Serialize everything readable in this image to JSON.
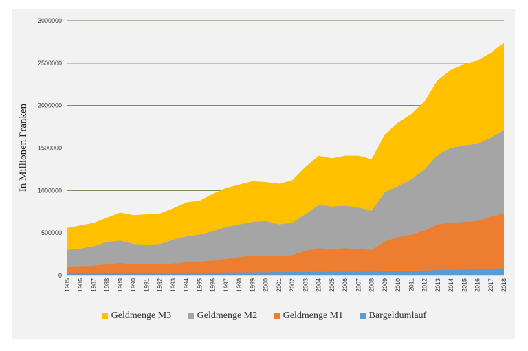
{
  "chart_data": {
    "type": "area",
    "stacked": true,
    "ylabel": "In Millionen Franken",
    "ylim": [
      0,
      3000000
    ],
    "yticks": [
      0,
      500000,
      1000000,
      1500000,
      2000000,
      2500000,
      3000000
    ],
    "ytick_labels": [
      "0",
      "500000",
      "1000000",
      "1500000",
      "2000000",
      "2500000",
      "3000000"
    ],
    "grid": true,
    "legend_position": "bottom",
    "xtick_labels": [
      "1985",
      "1986",
      "1987",
      "1988",
      "1989",
      "1990",
      "1991",
      "1992",
      "1993",
      "1994",
      "1995",
      "1996",
      "1997",
      "1998",
      "1999",
      "2000",
      "2001",
      "2002",
      "2003",
      "2004",
      "2005",
      "2006",
      "2007",
      "2008",
      "2009",
      "2010",
      "2011",
      "2012",
      "2013",
      "2014",
      "2015",
      "2016",
      "2017",
      "2018"
    ],
    "x": [
      1985,
      1986,
      1987,
      1988,
      1989,
      1990,
      1991,
      1992,
      1993,
      1994,
      1995,
      1996,
      1997,
      1998,
      1999,
      2000,
      2001,
      2002,
      2003,
      2004,
      2005,
      2006,
      2007,
      2008,
      2009,
      2010,
      2011,
      2012,
      2013,
      2014,
      2015,
      2016,
      2017,
      2018
    ],
    "series": [
      {
        "name": "Bargeldumlauf",
        "color": "#5b9bd5",
        "values": [
          25000,
          26000,
          27000,
          28000,
          29000,
          29000,
          29000,
          30000,
          31000,
          31000,
          32000,
          33000,
          34000,
          35000,
          36000,
          38000,
          39000,
          40000,
          41000,
          42000,
          43000,
          44000,
          45000,
          46000,
          48000,
          50000,
          53000,
          58000,
          64000,
          67000,
          70000,
          75000,
          80000,
          85000
        ]
      },
      {
        "name": "Geldmenge M1",
        "color": "#ed7d31",
        "values": [
          105000,
          108000,
          115000,
          130000,
          145000,
          128000,
          130000,
          130000,
          140000,
          155000,
          162000,
          175000,
          195000,
          215000,
          235000,
          230000,
          225000,
          240000,
          290000,
          320000,
          310000,
          320000,
          310000,
          300000,
          400000,
          450000,
          480000,
          530000,
          600000,
          620000,
          630000,
          640000,
          690000,
          730000
        ]
      },
      {
        "name": "Geldmenge M2",
        "color": "#a5a5a5",
        "values": [
          300000,
          315000,
          345000,
          395000,
          410000,
          370000,
          360000,
          370000,
          420000,
          460000,
          480000,
          520000,
          570000,
          600000,
          630000,
          640000,
          600000,
          620000,
          720000,
          830000,
          810000,
          820000,
          800000,
          760000,
          980000,
          1050000,
          1130000,
          1250000,
          1420000,
          1500000,
          1530000,
          1550000,
          1620000,
          1710000
        ]
      },
      {
        "name": "Geldmenge M3",
        "color": "#ffc000",
        "values": [
          560000,
          590000,
          620000,
          680000,
          740000,
          710000,
          720000,
          730000,
          790000,
          860000,
          880000,
          960000,
          1030000,
          1070000,
          1110000,
          1100000,
          1080000,
          1120000,
          1280000,
          1410000,
          1380000,
          1410000,
          1410000,
          1370000,
          1660000,
          1800000,
          1900000,
          2050000,
          2300000,
          2420000,
          2490000,
          2530000,
          2620000,
          2740000
        ]
      }
    ]
  }
}
